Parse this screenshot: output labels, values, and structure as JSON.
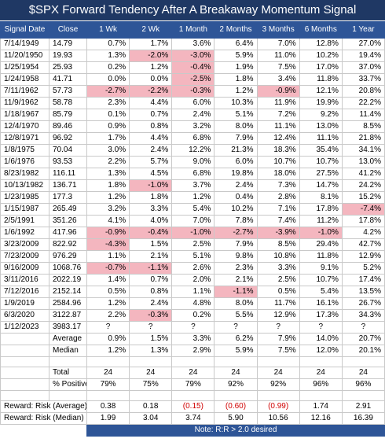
{
  "title": "$SPX Forward Tendency After A Breakaway Momentum Signal",
  "columns": [
    "Signal Date",
    "Close",
    "1 Wk",
    "2 Wk",
    "1 Month",
    "2 Months",
    "3 Months",
    "6 Months",
    "1 Year"
  ],
  "rows": [
    [
      "7/14/1949",
      "14.79",
      "0.7%",
      "1.7%",
      "3.6%",
      "6.4%",
      "7.0%",
      "12.8%",
      "27.0%"
    ],
    [
      "11/20/1950",
      "19.93",
      "1.3%",
      "-2.0%",
      "-3.0%",
      "5.9%",
      "11.0%",
      "10.2%",
      "19.4%"
    ],
    [
      "1/25/1954",
      "25.93",
      "0.2%",
      "1.2%",
      "-0.4%",
      "1.9%",
      "7.5%",
      "17.0%",
      "37.0%"
    ],
    [
      "1/24/1958",
      "41.71",
      "0.0%",
      "0.0%",
      "-2.5%",
      "1.8%",
      "3.4%",
      "11.8%",
      "33.7%"
    ],
    [
      "7/11/1962",
      "57.73",
      "-2.7%",
      "-2.2%",
      "-0.3%",
      "1.2%",
      "-0.9%",
      "12.1%",
      "20.8%"
    ],
    [
      "11/9/1962",
      "58.78",
      "2.3%",
      "4.4%",
      "6.0%",
      "10.3%",
      "11.9%",
      "19.9%",
      "22.2%"
    ],
    [
      "1/18/1967",
      "85.79",
      "0.1%",
      "0.7%",
      "2.4%",
      "5.1%",
      "7.2%",
      "9.2%",
      "11.4%"
    ],
    [
      "12/4/1970",
      "89.46",
      "0.9%",
      "0.8%",
      "3.2%",
      "8.0%",
      "11.1%",
      "13.0%",
      "8.5%"
    ],
    [
      "12/8/1971",
      "96.92",
      "1.7%",
      "4.4%",
      "6.8%",
      "7.9%",
      "12.4%",
      "11.1%",
      "21.8%"
    ],
    [
      "1/8/1975",
      "70.04",
      "3.0%",
      "2.4%",
      "12.2%",
      "21.3%",
      "18.3%",
      "35.4%",
      "34.1%"
    ],
    [
      "1/6/1976",
      "93.53",
      "2.2%",
      "5.7%",
      "9.0%",
      "6.0%",
      "10.7%",
      "10.7%",
      "13.0%"
    ],
    [
      "8/23/1982",
      "116.11",
      "1.3%",
      "4.5%",
      "6.8%",
      "19.8%",
      "18.0%",
      "27.5%",
      "41.2%"
    ],
    [
      "10/13/1982",
      "136.71",
      "1.8%",
      "-1.0%",
      "3.7%",
      "2.4%",
      "7.3%",
      "14.7%",
      "24.2%"
    ],
    [
      "1/23/1985",
      "177.3",
      "1.2%",
      "1.8%",
      "1.2%",
      "0.4%",
      "2.8%",
      "8.1%",
      "15.2%"
    ],
    [
      "1/15/1987",
      "265.49",
      "3.2%",
      "3.3%",
      "5.4%",
      "10.2%",
      "7.1%",
      "17.8%",
      "-7.4%"
    ],
    [
      "2/5/1991",
      "351.26",
      "4.1%",
      "4.0%",
      "7.0%",
      "7.8%",
      "7.4%",
      "11.2%",
      "17.8%"
    ],
    [
      "1/6/1992",
      "417.96",
      "-0.9%",
      "-0.4%",
      "-1.0%",
      "-2.7%",
      "-3.9%",
      "-1.0%",
      "4.2%"
    ],
    [
      "3/23/2009",
      "822.92",
      "-4.3%",
      "1.5%",
      "2.5%",
      "7.9%",
      "8.5%",
      "29.4%",
      "42.7%"
    ],
    [
      "7/23/2009",
      "976.29",
      "1.1%",
      "2.1%",
      "5.1%",
      "9.8%",
      "10.8%",
      "11.8%",
      "12.9%"
    ],
    [
      "9/16/2009",
      "1068.76",
      "-0.7%",
      "-1.1%",
      "2.6%",
      "2.3%",
      "3.3%",
      "9.1%",
      "5.2%"
    ],
    [
      "3/11/2016",
      "2022.19",
      "1.4%",
      "0.7%",
      "2.0%",
      "2.1%",
      "2.5%",
      "10.7%",
      "17.4%"
    ],
    [
      "7/12/2016",
      "2152.14",
      "0.5%",
      "0.8%",
      "1.1%",
      "-1.1%",
      "0.5%",
      "5.4%",
      "13.5%"
    ],
    [
      "1/9/2019",
      "2584.96",
      "1.2%",
      "2.4%",
      "4.8%",
      "8.0%",
      "11.7%",
      "16.1%",
      "26.7%"
    ],
    [
      "6/3/2020",
      "3122.87",
      "2.2%",
      "-0.3%",
      "0.2%",
      "5.5%",
      "12.9%",
      "17.3%",
      "34.3%"
    ],
    [
      "1/12/2023",
      "3983.17",
      "?",
      "?",
      "?",
      "?",
      "?",
      "?",
      "?"
    ]
  ],
  "stats": [
    {
      "label": "Average",
      "values": [
        "0.9%",
        "1.5%",
        "3.3%",
        "6.2%",
        "7.9%",
        "14.0%",
        "20.7%"
      ]
    },
    {
      "label": "Median",
      "values": [
        "1.2%",
        "1.3%",
        "2.9%",
        "5.9%",
        "7.5%",
        "12.0%",
        "20.1%"
      ]
    }
  ],
  "totals": [
    {
      "label": "Total",
      "values": [
        "24",
        "24",
        "24",
        "24",
        "24",
        "24",
        "24"
      ]
    },
    {
      "label": "% Positive",
      "values": [
        "79%",
        "75%",
        "79%",
        "92%",
        "92%",
        "96%",
        "96%"
      ]
    }
  ],
  "reward_risk": [
    {
      "label": "Reward:  Risk (Average)",
      "values": [
        "0.38",
        "0.18",
        "(0.15)",
        "(0.60)",
        "(0.99)",
        "1.74",
        "2.91"
      ]
    },
    {
      "label": "Reward:  Risk (Median)",
      "values": [
        "1.99",
        "3.04",
        "3.74",
        "5.90",
        "10.56",
        "12.16",
        "16.39"
      ]
    }
  ],
  "note": "Note:  R:R > 2.0 desired"
}
